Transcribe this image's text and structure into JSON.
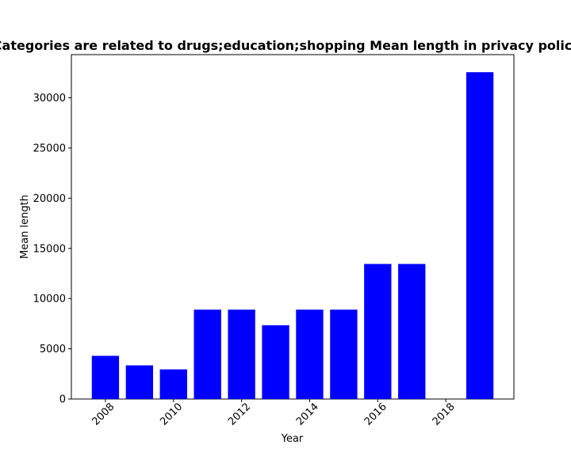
{
  "chart_data": {
    "type": "bar",
    "title": "Categories are related to drugs;education;shopping Mean length in privacy policies",
    "xlabel": "Year",
    "ylabel": "Mean length",
    "x": [
      2008,
      2009,
      2010,
      2011,
      2012,
      2013,
      2014,
      2015,
      2016,
      2017,
      2019
    ],
    "values": [
      4300,
      3350,
      2950,
      8900,
      8900,
      7350,
      8900,
      8900,
      13450,
      13450,
      32550
    ],
    "xlim": [
      2007.0,
      2020.0
    ],
    "ylim": [
      0,
      34300
    ],
    "xticks": [
      2008,
      2010,
      2012,
      2014,
      2016,
      2018
    ],
    "yticks": [
      0,
      5000,
      10000,
      15000,
      20000,
      25000,
      30000
    ],
    "bar_color": "#0000ff",
    "grid": false
  }
}
